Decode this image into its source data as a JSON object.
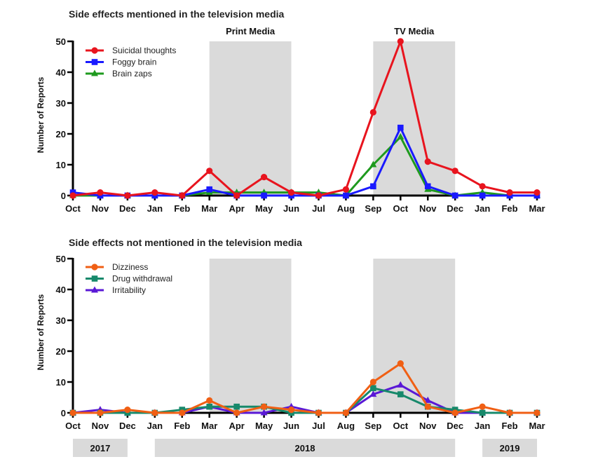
{
  "chart_data": [
    {
      "type": "line",
      "title": "Side effects mentioned in the television media",
      "xlabel": "",
      "ylabel": "Number of Reports",
      "ylim": [
        0,
        50
      ],
      "yticks": [
        "0",
        "10",
        "20",
        "30",
        "40",
        "50"
      ],
      "categories": [
        "Oct",
        "Nov",
        "Dec",
        "Jan",
        "Feb",
        "Mar",
        "Apr",
        "May",
        "Jun",
        "Jul",
        "Aug",
        "Sep",
        "Oct",
        "Nov",
        "Dec",
        "Jan",
        "Feb",
        "Mar"
      ],
      "shaded_regions": [
        {
          "label": "Print Media",
          "from_index": 5,
          "to_index": 8
        },
        {
          "label": "TV Media",
          "from_index": 11,
          "to_index": 14
        }
      ],
      "legend_position": "top-left",
      "series": [
        {
          "name": "Suicidal thoughts",
          "color": "#e8141e",
          "marker": "circle",
          "values": [
            0,
            1,
            0,
            1,
            0,
            8,
            0,
            6,
            1,
            0,
            2,
            27,
            50,
            11,
            8,
            3,
            1,
            1
          ]
        },
        {
          "name": "Foggy brain",
          "color": "#1a1aff",
          "marker": "square",
          "values": [
            1,
            0,
            0,
            0,
            0,
            2,
            0,
            0,
            0,
            0,
            0,
            3,
            22,
            3,
            0,
            0,
            0,
            0
          ]
        },
        {
          "name": "Brain zaps",
          "color": "#1e9a1e",
          "marker": "triangle",
          "values": [
            0,
            0,
            0,
            0,
            0,
            1,
            1,
            1,
            1,
            1,
            0,
            10,
            19,
            2,
            0,
            1,
            0,
            0
          ]
        }
      ]
    },
    {
      "type": "line",
      "title": "Side effects not mentioned in the television media",
      "xlabel": "",
      "ylabel": "Number of Reports",
      "ylim": [
        0,
        50
      ],
      "yticks": [
        "0",
        "10",
        "20",
        "30",
        "40",
        "50"
      ],
      "categories": [
        "Oct",
        "Nov",
        "Dec",
        "Jan",
        "Feb",
        "Mar",
        "Apr",
        "May",
        "Jun",
        "Jul",
        "Aug",
        "Sep",
        "Oct",
        "Nov",
        "Dec",
        "Jan",
        "Feb",
        "Mar"
      ],
      "shaded_regions": [
        {
          "label": "",
          "from_index": 5,
          "to_index": 8
        },
        {
          "label": "",
          "from_index": 11,
          "to_index": 14
        }
      ],
      "legend_position": "top-left",
      "series": [
        {
          "name": "Dizziness",
          "color": "#f05f14",
          "marker": "circle",
          "values": [
            0,
            0,
            1,
            0,
            0,
            4,
            0,
            2,
            1,
            0,
            0,
            10,
            16,
            2,
            0,
            2,
            0,
            0
          ]
        },
        {
          "name": "Drug withdrawal",
          "color": "#17896b",
          "marker": "square",
          "values": [
            0,
            0,
            0,
            0,
            1,
            2,
            2,
            2,
            0,
            0,
            0,
            8,
            6,
            2,
            1,
            0,
            0,
            0
          ]
        },
        {
          "name": "Irritability",
          "color": "#5a18d6",
          "marker": "triangle",
          "values": [
            0,
            1,
            0,
            0,
            0,
            2,
            0,
            0,
            2,
            0,
            0,
            6,
            9,
            4,
            0,
            0,
            0,
            0
          ]
        }
      ]
    }
  ],
  "years": [
    {
      "label": "2017",
      "from_index": 0,
      "to_index": 2
    },
    {
      "label": "2018",
      "from_index": 3,
      "to_index": 14
    },
    {
      "label": "2019",
      "from_index": 15,
      "to_index": 17
    }
  ]
}
